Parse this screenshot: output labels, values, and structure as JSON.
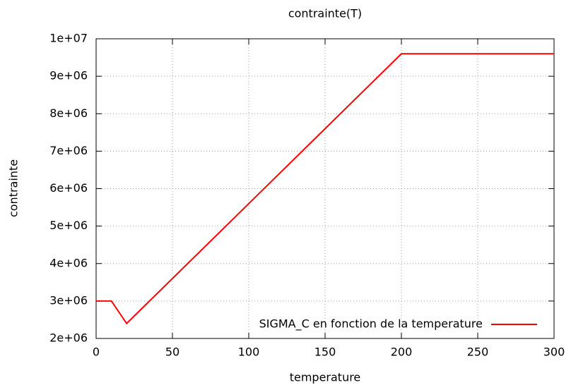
{
  "chart_data": {
    "type": "line",
    "title": "contrainte(T)",
    "x_label": "temperature",
    "y_label": "contrainte",
    "x": [
      0,
      10,
      20,
      200,
      300
    ],
    "series": [
      {
        "name": "SIGMA_C en fonction de la temperature",
        "color": "#ff0000",
        "values": [
          3000000,
          3000000,
          2400000,
          9600000,
          9600000
        ]
      }
    ],
    "xlim": [
      0,
      300
    ],
    "xticks": [
      0,
      50,
      100,
      150,
      200,
      250,
      300
    ],
    "ylim": [
      2000000,
      10000000
    ],
    "yticks": [
      {
        "value": 2000000,
        "label": "2e+06"
      },
      {
        "value": 3000000,
        "label": "3e+06"
      },
      {
        "value": 4000000,
        "label": "4e+06"
      },
      {
        "value": 5000000,
        "label": "5e+06"
      },
      {
        "value": 6000000,
        "label": "6e+06"
      },
      {
        "value": 7000000,
        "label": "7e+06"
      },
      {
        "value": 8000000,
        "label": "8e+06"
      },
      {
        "value": 9000000,
        "label": "9e+06"
      },
      {
        "value": 10000000,
        "label": "1e+07"
      }
    ],
    "grid": true,
    "legend": "bottom-right"
  }
}
